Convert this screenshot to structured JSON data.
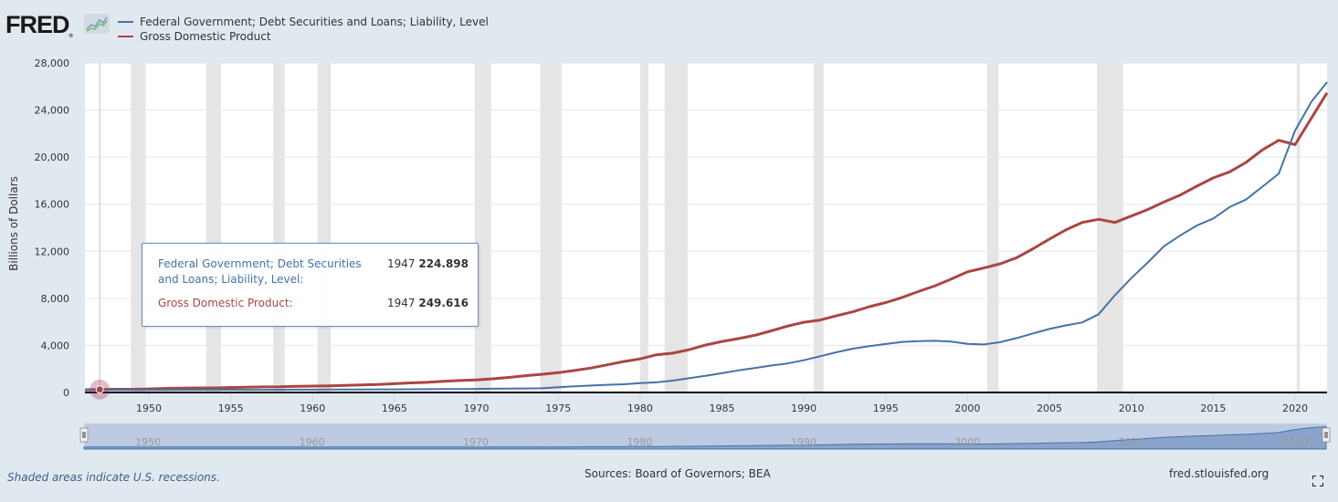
{
  "header": {
    "logo_text": "FRED",
    "logo_reg": "®",
    "legend": [
      {
        "label": "Federal Government; Debt Securities and Loans; Liability, Level",
        "color": "#4572a7"
      },
      {
        "label": "Gross Domestic Product",
        "color": "#aa4643"
      }
    ]
  },
  "tooltip": {
    "rows": [
      {
        "label": "Federal Government; Debt Securities and Loans; Liability, Level:",
        "year": "1947",
        "value": "224.898",
        "color": "#4572a7"
      },
      {
        "label": "Gross Domestic Product:",
        "year": "1947",
        "value": "249.616",
        "color": "#aa4643"
      }
    ]
  },
  "footer": {
    "recession_note": "Shaded areas indicate U.S. recessions.",
    "sources": "Sources: Board of Governors; BEA",
    "site": "fred.stlouisfed.org"
  },
  "chart_data": {
    "type": "line",
    "title": "",
    "xlabel": "",
    "ylabel": "Billions of Dollars",
    "xlim": [
      1946.2,
      2022
    ],
    "ylim": [
      0,
      28000
    ],
    "yticks": [
      0,
      4000,
      8000,
      12000,
      16000,
      20000,
      24000,
      28000
    ],
    "ytick_labels": [
      "0",
      "4,000",
      "8,000",
      "12,000",
      "16,000",
      "20,000",
      "24,000",
      "28,000"
    ],
    "xticks": [
      1950,
      1955,
      1960,
      1965,
      1970,
      1975,
      1980,
      1985,
      1990,
      1995,
      2000,
      2005,
      2010,
      2015,
      2020
    ],
    "grid": true,
    "legend_position": "top-left",
    "highlight_year": 1947,
    "navigator_labels": [
      "1950",
      "1960",
      "1970",
      "1980",
      "1990",
      "2000",
      "2010",
      "2020"
    ],
    "recessions": [
      [
        1948.9,
        1949.8
      ],
      [
        1953.5,
        1954.4
      ],
      [
        1957.6,
        1958.3
      ],
      [
        1960.3,
        1961.1
      ],
      [
        1969.9,
        1970.9
      ],
      [
        1973.9,
        1975.2
      ],
      [
        1980.0,
        1980.5
      ],
      [
        1981.5,
        1982.9
      ],
      [
        1990.6,
        1991.2
      ],
      [
        2001.2,
        2001.9
      ],
      [
        2007.9,
        2009.5
      ],
      [
        2020.1,
        2020.3
      ]
    ],
    "x": [
      1946,
      1947,
      1948,
      1949,
      1950,
      1951,
      1952,
      1953,
      1954,
      1955,
      1956,
      1957,
      1958,
      1959,
      1960,
      1961,
      1962,
      1963,
      1964,
      1965,
      1966,
      1967,
      1968,
      1969,
      1970,
      1971,
      1972,
      1973,
      1974,
      1975,
      1976,
      1977,
      1978,
      1979,
      1980,
      1981,
      1982,
      1983,
      1984,
      1985,
      1986,
      1987,
      1988,
      1989,
      1990,
      1991,
      1992,
      1993,
      1994,
      1995,
      1996,
      1997,
      1998,
      1999,
      2000,
      2001,
      2002,
      2003,
      2004,
      2005,
      2006,
      2007,
      2008,
      2009,
      2010,
      2011,
      2012,
      2013,
      2014,
      2015,
      2016,
      2017,
      2018,
      2019,
      2020,
      2021,
      2022
    ],
    "series": [
      {
        "name": "Federal Government; Debt Securities and Loans; Liability, Level",
        "color": "#4572a7",
        "values": [
          229,
          225,
          219,
          220,
          219,
          218,
          222,
          227,
          229,
          230,
          226,
          225,
          232,
          240,
          239,
          245,
          253,
          257,
          264,
          267,
          272,
          283,
          292,
          289,
          300,
          317,
          332,
          344,
          356,
          440,
          520,
          590,
          650,
          700,
          790,
          860,
          1010,
          1210,
          1420,
          1640,
          1880,
          2080,
          2290,
          2470,
          2740,
          3080,
          3420,
          3720,
          3940,
          4120,
          4300,
          4370,
          4390,
          4330,
          4130,
          4080,
          4270,
          4620,
          5020,
          5400,
          5700,
          5950,
          6650,
          8270,
          9720,
          11040,
          12430,
          13360,
          14190,
          14780,
          15750,
          16390,
          17480,
          18590,
          22260,
          24700,
          26370
        ]
      },
      {
        "name": "Gross Domestic Product",
        "color": "#aa4643",
        "values": [
          228,
          250,
          272,
          272,
          300,
          347,
          367,
          389,
          391,
          425,
          449,
          474,
          482,
          522,
          543,
          563,
          605,
          638,
          686,
          743,
          815,
          861,
          943,
          1019,
          1073,
          1164,
          1280,
          1425,
          1545,
          1684,
          1873,
          2082,
          2352,
          2627,
          2857,
          3207,
          3343,
          3634,
          4037,
          4339,
          4580,
          4855,
          5236,
          5642,
          5963,
          6158,
          6520,
          6859,
          7287,
          7640,
          8073,
          8577,
          9063,
          9631,
          10251,
          10582,
          10936,
          11458,
          12214,
          13037,
          13815,
          14452,
          14713,
          14449,
          14992,
          15543,
          16197,
          16785,
          17527,
          18238,
          18745,
          19543,
          20612,
          21433,
          21061,
          23315,
          25460
        ]
      }
    ]
  }
}
